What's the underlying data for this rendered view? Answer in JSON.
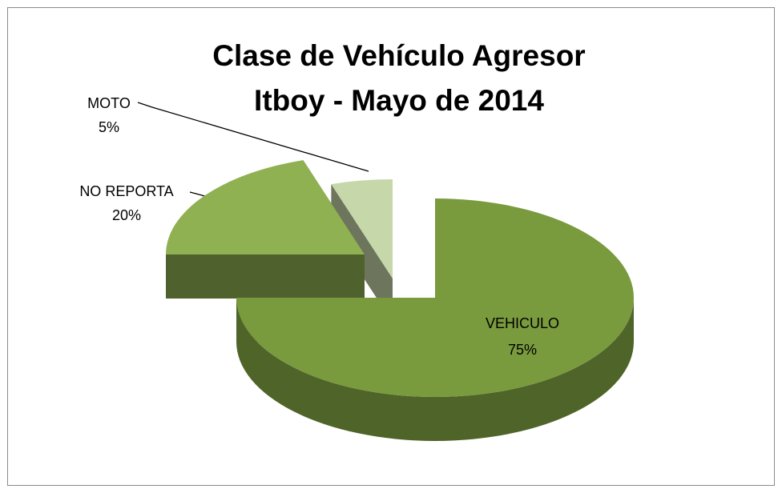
{
  "chart_data": {
    "type": "pie3d",
    "title": [
      "Clase de Vehículo Agresor",
      "Itboy - Mayo de 2014"
    ],
    "categories": [
      "VEHICULO",
      "NO REPORTA",
      "MOTO"
    ],
    "values": [
      75,
      20,
      5
    ],
    "value_labels": [
      "75%",
      "20%",
      "5%"
    ],
    "colors": [
      "#7a9a3e",
      "#8fb152",
      "#c6d7a9"
    ]
  }
}
